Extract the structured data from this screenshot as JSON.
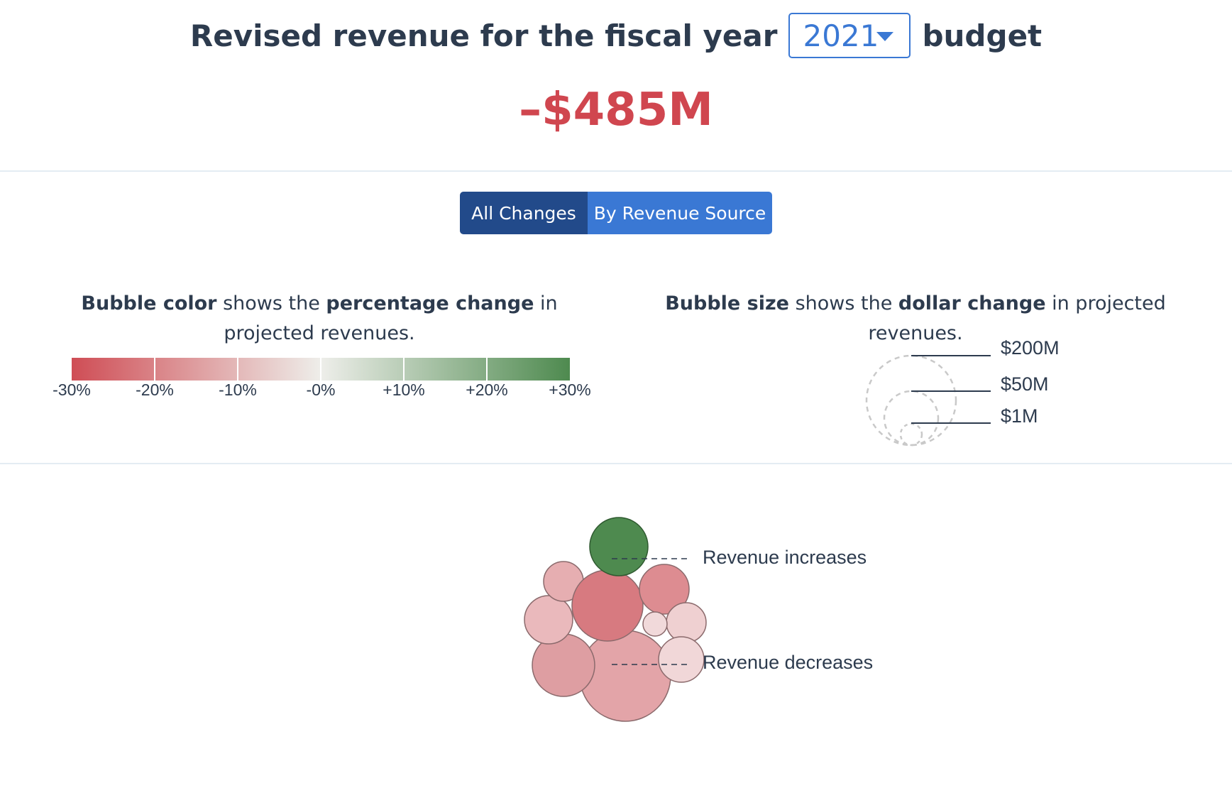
{
  "header": {
    "title_prefix": "Revised revenue for the fiscal year",
    "year_selected": "2021",
    "title_suffix": "budget",
    "total_change": "–$485M"
  },
  "toggle": {
    "all_changes_label": "All Changes",
    "by_source_label": "By Revenue Source",
    "active": "All Changes"
  },
  "color_legend": {
    "text_parts": [
      "Bubble color",
      " shows the ",
      "percentage change",
      " in projected revenues."
    ],
    "ticks": [
      "-30%",
      "-20%",
      "-10%",
      "-0%",
      "+10%",
      "+20%",
      "+30%"
    ],
    "colors": {
      "negative": "#cf4d55",
      "neutral": "#eeeeea",
      "positive": "#4e8a4f"
    }
  },
  "size_legend": {
    "text_parts": [
      "Bubble size",
      " shows the ",
      "dollar change",
      " in projected revenues."
    ],
    "labels": [
      "$200M",
      "$50M",
      "$1M"
    ]
  },
  "annotations": {
    "increases": "Revenue increases",
    "decreases": "Revenue decreases"
  }
}
